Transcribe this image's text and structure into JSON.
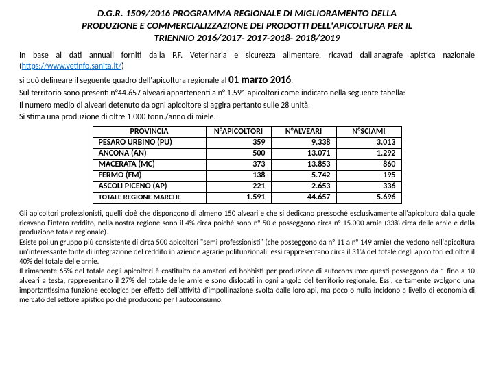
{
  "title_line1": "D.G.R. 1509/2016 PROGRAMMA REGIONALE DI MIGLIORAMENTO DELLA",
  "title_line2": "PRODUZIONE E COMMERCIALIZZAZIONE DEI PRODOTTI DELL'APICOLTURA PER IL",
  "title_line3": "TRIENNIO 2016/2017- 2017-2018- 2018/2019",
  "intro": {
    "p1a": "In base ai dati annuali forniti dalla P.F. Veterinaria e sicurezza alimentare, ricavati dall'anagrafe apistica nazionale (",
    "link": "https://www.vetinfo.sanita.it/",
    "p1b": ")",
    "p2a": " si può delineare il seguente quadro dell'apicoltura regionale al ",
    "p2date": "01 marzo 2016",
    "p2b": ".",
    "p3": "Sul territorio sono presenti n°44.657 alveari appartenenti a n° 1.591 apicoltori come indicato nella seguente tabella:",
    "p4": "Il numero medio di alveari detenuto da ogni apicoltore si aggira pertanto sulle 28 unità.",
    "p5": "Si stima una produzione di oltre 1.000 tonn./anno di miele."
  },
  "table": {
    "headers": [
      "PROVINCIA",
      "N°APICOLTORI",
      "N°ALVEARI",
      "N°SCIAMI"
    ],
    "rows": [
      [
        "PESARO URBINO (PU)",
        "359",
        "9.338",
        "3.013"
      ],
      [
        "ANCONA (AN)",
        "500",
        "13.071",
        "1.292"
      ],
      [
        "MACERATA (MC)",
        "373",
        "13.853",
        "860"
      ],
      [
        "FERMO (FM)",
        "138",
        "5.742",
        "195"
      ],
      [
        "ASCOLI PICENO (AP)",
        "221",
        "2.653",
        "336"
      ],
      [
        "TOTALE REGIONE MARCHE",
        "1.591",
        "44.657",
        "5.696"
      ]
    ]
  },
  "footer": {
    "p1": "Gli apicoltori professionisti, quelli cioè che dispongono di almeno 150 alveari e che si dedicano pressoché esclusivamente all'apicoltura dalla quale ricavano l'intero reddito, nella nostra regione sono il 4% circa poiché sono n° 50 e posseggono circa n° 15.000 arnie (33% circa delle arnie e della produzione totale regionale).",
    "p2": "Esiste poi un gruppo più consistente di circa 500 apicoltori \"semi professionisti\" (che posseggono da n° 11 a n° 149 arnie) che vedono nell'apicoltura un'interessante fonte di integrazione del reddito in aziende agrarie polifunzionali; essi rappresentano circa il 31% del totale degli apicoltori ed oltre il 40% del totale delle arnie.",
    "p3": "Il rimanente 65% del totale degli apicoltori è costituito da amatori ed hobbisti per produzione di autoconsumo: questi posseggono da 1 fino a 10 alveari a testa, rappresentano il 27% del totale delle arnie e sono dislocati in ogni angolo del territorio regionale. Essi, certamente svolgono una importantissima funzione ecologica per effetto dell'attività d'impollinazione svolta dalle loro api, ma poco o nulla incidono a livello di economia di mercato del settore apistico poiché producono per l'autoconsumo."
  }
}
